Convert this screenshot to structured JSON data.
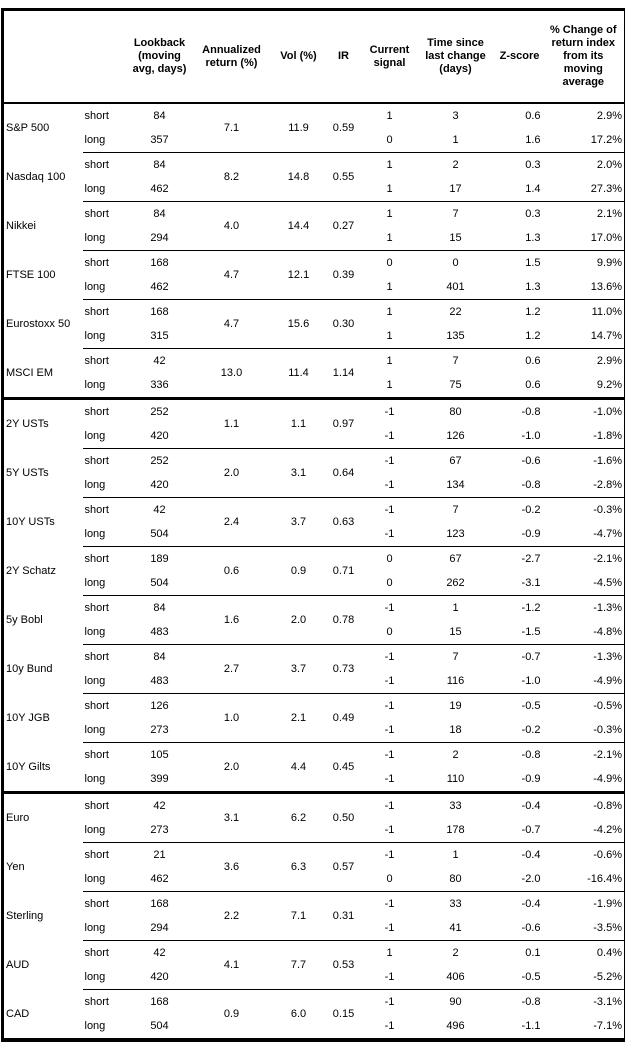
{
  "colors": {
    "border": "#000000",
    "text": "#000000",
    "background": "#ffffff"
  },
  "chart_data": {
    "type": "table",
    "columns": [
      {
        "id": "asset",
        "label": ""
      },
      {
        "id": "horizon",
        "label": ""
      },
      {
        "id": "lookback",
        "label": "Lookback\n(moving\navg, days)"
      },
      {
        "id": "annualized_return",
        "label": "Annualized\nreturn (%)"
      },
      {
        "id": "vol",
        "label": "Vol (%)"
      },
      {
        "id": "ir",
        "label": "IR"
      },
      {
        "id": "current_signal",
        "label": "Current\nsignal"
      },
      {
        "id": "time_since",
        "label": "Time since\nlast change\n(days)"
      },
      {
        "id": "z_score",
        "label": "Z-score"
      },
      {
        "id": "pct_change",
        "label": "% Change of\nreturn index\nfrom its\nmoving\naverage"
      }
    ],
    "sections": [
      {
        "assets": [
          {
            "name": "S&P 500",
            "annualized_return": "7.1",
            "vol": "11.9",
            "ir": "0.59",
            "rows": [
              {
                "horizon": "short",
                "lookback": "84",
                "current_signal": "1",
                "time_since": "3",
                "z_score": "0.6",
                "pct_change": "2.9%"
              },
              {
                "horizon": "long",
                "lookback": "357",
                "current_signal": "0",
                "time_since": "1",
                "z_score": "1.6",
                "pct_change": "17.2%"
              }
            ]
          },
          {
            "name": "Nasdaq 100",
            "annualized_return": "8.2",
            "vol": "14.8",
            "ir": "0.55",
            "rows": [
              {
                "horizon": "short",
                "lookback": "84",
                "current_signal": "1",
                "time_since": "2",
                "z_score": "0.3",
                "pct_change": "2.0%"
              },
              {
                "horizon": "long",
                "lookback": "462",
                "current_signal": "1",
                "time_since": "17",
                "z_score": "1.4",
                "pct_change": "27.3%"
              }
            ]
          },
          {
            "name": "Nikkei",
            "annualized_return": "4.0",
            "vol": "14.4",
            "ir": "0.27",
            "rows": [
              {
                "horizon": "short",
                "lookback": "84",
                "current_signal": "1",
                "time_since": "7",
                "z_score": "0.3",
                "pct_change": "2.1%"
              },
              {
                "horizon": "long",
                "lookback": "294",
                "current_signal": "1",
                "time_since": "15",
                "z_score": "1.3",
                "pct_change": "17.0%"
              }
            ]
          },
          {
            "name": "FTSE 100",
            "annualized_return": "4.7",
            "vol": "12.1",
            "ir": "0.39",
            "rows": [
              {
                "horizon": "short",
                "lookback": "168",
                "current_signal": "0",
                "time_since": "0",
                "z_score": "1.5",
                "pct_change": "9.9%"
              },
              {
                "horizon": "long",
                "lookback": "462",
                "current_signal": "1",
                "time_since": "401",
                "z_score": "1.3",
                "pct_change": "13.6%"
              }
            ]
          },
          {
            "name": "Eurostoxx 50",
            "annualized_return": "4.7",
            "vol": "15.6",
            "ir": "0.30",
            "rows": [
              {
                "horizon": "short",
                "lookback": "168",
                "current_signal": "1",
                "time_since": "22",
                "z_score": "1.2",
                "pct_change": "11.0%"
              },
              {
                "horizon": "long",
                "lookback": "315",
                "current_signal": "1",
                "time_since": "135",
                "z_score": "1.2",
                "pct_change": "14.7%"
              }
            ]
          },
          {
            "name": "MSCI EM",
            "annualized_return": "13.0",
            "vol": "11.4",
            "ir": "1.14",
            "rows": [
              {
                "horizon": "short",
                "lookback": "42",
                "current_signal": "1",
                "time_since": "7",
                "z_score": "0.6",
                "pct_change": "2.9%"
              },
              {
                "horizon": "long",
                "lookback": "336",
                "current_signal": "1",
                "time_since": "75",
                "z_score": "0.6",
                "pct_change": "9.2%"
              }
            ]
          }
        ]
      },
      {
        "assets": [
          {
            "name": "2Y USTs",
            "annualized_return": "1.1",
            "vol": "1.1",
            "ir": "0.97",
            "rows": [
              {
                "horizon": "short",
                "lookback": "252",
                "current_signal": "-1",
                "time_since": "80",
                "z_score": "-0.8",
                "pct_change": "-1.0%"
              },
              {
                "horizon": "long",
                "lookback": "420",
                "current_signal": "-1",
                "time_since": "126",
                "z_score": "-1.0",
                "pct_change": "-1.8%"
              }
            ]
          },
          {
            "name": "5Y USTs",
            "annualized_return": "2.0",
            "vol": "3.1",
            "ir": "0.64",
            "rows": [
              {
                "horizon": "short",
                "lookback": "252",
                "current_signal": "-1",
                "time_since": "67",
                "z_score": "-0.6",
                "pct_change": "-1.6%"
              },
              {
                "horizon": "long",
                "lookback": "420",
                "current_signal": "-1",
                "time_since": "134",
                "z_score": "-0.8",
                "pct_change": "-2.8%"
              }
            ]
          },
          {
            "name": "10Y USTs",
            "annualized_return": "2.4",
            "vol": "3.7",
            "ir": "0.63",
            "rows": [
              {
                "horizon": "short",
                "lookback": "42",
                "current_signal": "-1",
                "time_since": "7",
                "z_score": "-0.2",
                "pct_change": "-0.3%"
              },
              {
                "horizon": "long",
                "lookback": "504",
                "current_signal": "-1",
                "time_since": "123",
                "z_score": "-0.9",
                "pct_change": "-4.7%"
              }
            ]
          },
          {
            "name": "2Y Schatz",
            "annualized_return": "0.6",
            "vol": "0.9",
            "ir": "0.71",
            "rows": [
              {
                "horizon": "short",
                "lookback": "189",
                "current_signal": "0",
                "time_since": "67",
                "z_score": "-2.7",
                "pct_change": "-2.1%"
              },
              {
                "horizon": "long",
                "lookback": "504",
                "current_signal": "0",
                "time_since": "262",
                "z_score": "-3.1",
                "pct_change": "-4.5%"
              }
            ]
          },
          {
            "name": "5y Bobl",
            "annualized_return": "1.6",
            "vol": "2.0",
            "ir": "0.78",
            "rows": [
              {
                "horizon": "short",
                "lookback": "84",
                "current_signal": "-1",
                "time_since": "1",
                "z_score": "-1.2",
                "pct_change": "-1.3%"
              },
              {
                "horizon": "long",
                "lookback": "483",
                "current_signal": "0",
                "time_since": "15",
                "z_score": "-1.5",
                "pct_change": "-4.8%"
              }
            ]
          },
          {
            "name": "10y Bund",
            "annualized_return": "2.7",
            "vol": "3.7",
            "ir": "0.73",
            "rows": [
              {
                "horizon": "short",
                "lookback": "84",
                "current_signal": "-1",
                "time_since": "7",
                "z_score": "-0.7",
                "pct_change": "-1.3%"
              },
              {
                "horizon": "long",
                "lookback": "483",
                "current_signal": "-1",
                "time_since": "116",
                "z_score": "-1.0",
                "pct_change": "-4.9%"
              }
            ]
          },
          {
            "name": "10Y JGB",
            "annualized_return": "1.0",
            "vol": "2.1",
            "ir": "0.49",
            "rows": [
              {
                "horizon": "short",
                "lookback": "126",
                "current_signal": "-1",
                "time_since": "19",
                "z_score": "-0.5",
                "pct_change": "-0.5%"
              },
              {
                "horizon": "long",
                "lookback": "273",
                "current_signal": "-1",
                "time_since": "18",
                "z_score": "-0.2",
                "pct_change": "-0.3%"
              }
            ]
          },
          {
            "name": "10Y Gilts",
            "annualized_return": "2.0",
            "vol": "4.4",
            "ir": "0.45",
            "rows": [
              {
                "horizon": "short",
                "lookback": "105",
                "current_signal": "-1",
                "time_since": "2",
                "z_score": "-0.8",
                "pct_change": "-2.1%"
              },
              {
                "horizon": "long",
                "lookback": "399",
                "current_signal": "-1",
                "time_since": "110",
                "z_score": "-0.9",
                "pct_change": "-4.9%"
              }
            ]
          }
        ]
      },
      {
        "assets": [
          {
            "name": "Euro",
            "annualized_return": "3.1",
            "vol": "6.2",
            "ir": "0.50",
            "rows": [
              {
                "horizon": "short",
                "lookback": "42",
                "current_signal": "-1",
                "time_since": "33",
                "z_score": "-0.4",
                "pct_change": "-0.8%"
              },
              {
                "horizon": "long",
                "lookback": "273",
                "current_signal": "-1",
                "time_since": "178",
                "z_score": "-0.7",
                "pct_change": "-4.2%"
              }
            ]
          },
          {
            "name": "Yen",
            "annualized_return": "3.6",
            "vol": "6.3",
            "ir": "0.57",
            "rows": [
              {
                "horizon": "short",
                "lookback": "21",
                "current_signal": "-1",
                "time_since": "1",
                "z_score": "-0.4",
                "pct_change": "-0.6%"
              },
              {
                "horizon": "long",
                "lookback": "462",
                "current_signal": "0",
                "time_since": "80",
                "z_score": "-2.0",
                "pct_change": "-16.4%"
              }
            ]
          },
          {
            "name": "Sterling",
            "annualized_return": "2.2",
            "vol": "7.1",
            "ir": "0.31",
            "rows": [
              {
                "horizon": "short",
                "lookback": "168",
                "current_signal": "-1",
                "time_since": "33",
                "z_score": "-0.4",
                "pct_change": "-1.9%"
              },
              {
                "horizon": "long",
                "lookback": "294",
                "current_signal": "-1",
                "time_since": "41",
                "z_score": "-0.6",
                "pct_change": "-3.5%"
              }
            ]
          },
          {
            "name": "AUD",
            "annualized_return": "4.1",
            "vol": "7.7",
            "ir": "0.53",
            "rows": [
              {
                "horizon": "short",
                "lookback": "42",
                "current_signal": "1",
                "time_since": "2",
                "z_score": "0.1",
                "pct_change": "0.4%"
              },
              {
                "horizon": "long",
                "lookback": "420",
                "current_signal": "-1",
                "time_since": "406",
                "z_score": "-0.5",
                "pct_change": "-5.2%"
              }
            ]
          },
          {
            "name": "CAD",
            "annualized_return": "0.9",
            "vol": "6.0",
            "ir": "0.15",
            "rows": [
              {
                "horizon": "short",
                "lookback": "168",
                "current_signal": "-1",
                "time_since": "90",
                "z_score": "-0.8",
                "pct_change": "-3.1%"
              },
              {
                "horizon": "long",
                "lookback": "504",
                "current_signal": "-1",
                "time_since": "496",
                "z_score": "-1.1",
                "pct_change": "-7.1%"
              }
            ]
          }
        ]
      }
    ]
  }
}
